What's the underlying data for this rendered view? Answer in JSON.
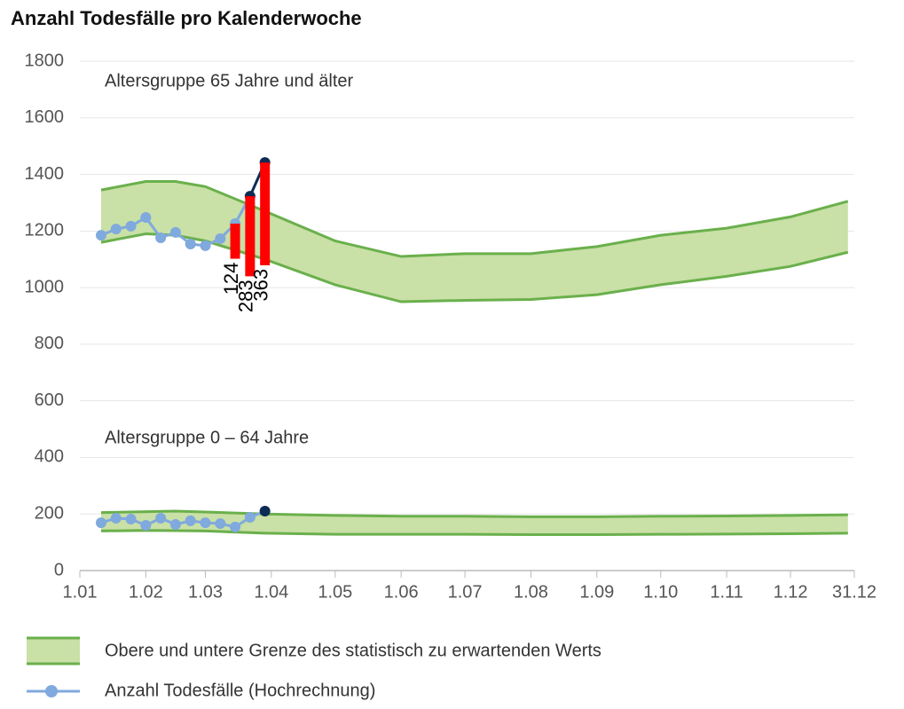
{
  "chart_data": {
    "type": "band-line",
    "title": "Anzahl Todesfälle pro Kalenderwoche",
    "xlim": [
      1,
      365
    ],
    "xticks": [
      {
        "value": 1,
        "label": "1.01"
      },
      {
        "value": 32,
        "label": "1.02"
      },
      {
        "value": 60,
        "label": "1.03"
      },
      {
        "value": 91,
        "label": "1.04"
      },
      {
        "value": 121,
        "label": "1.05"
      },
      {
        "value": 152,
        "label": "1.06"
      },
      {
        "value": 182,
        "label": "1.07"
      },
      {
        "value": 213,
        "label": "1.08"
      },
      {
        "value": 244,
        "label": "1.09"
      },
      {
        "value": 274,
        "label": "1.10"
      },
      {
        "value": 305,
        "label": "1.11"
      },
      {
        "value": 335,
        "label": "1.12"
      },
      {
        "value": 365,
        "label": "31.12"
      }
    ],
    "ylim": [
      0,
      1800
    ],
    "yticks": [
      0,
      200,
      400,
      600,
      800,
      1000,
      1200,
      1400,
      1600,
      1800
    ],
    "grid": true,
    "band_name": "Obere und untere Grenze des statistisch zu erwartenden Werts",
    "band_color": "#c9e0a6",
    "band_edge_color": "#6ab04c",
    "line_name": "Anzahl Todesfälle (Hochrechnung)",
    "line_color": "#80a9dd",
    "x": [
      11,
      18,
      25,
      32,
      39,
      46,
      53,
      60,
      67,
      74,
      81,
      88
    ],
    "band_x": [
      11,
      32,
      46,
      60,
      88,
      121,
      152,
      182,
      213,
      244,
      274,
      305,
      335,
      362
    ],
    "excess_color": "#ff0000",
    "groups": [
      {
        "label": "Altersgruppe 65 Jahre und älter",
        "values": [
          1185,
          1207,
          1217,
          1248,
          1176,
          1195,
          1154,
          1148,
          1173,
          1226,
          1323,
          1442
        ],
        "marker_colors": [
          "#80a9dd",
          "#80a9dd",
          "#80a9dd",
          "#80a9dd",
          "#80a9dd",
          "#80a9dd",
          "#80a9dd",
          "#80a9dd",
          "#80a9dd",
          "#80a9dd",
          "#0d2c54",
          "#0d2c54"
        ],
        "band_upper": [
          1345,
          1375,
          1375,
          1357,
          1270,
          1165,
          1110,
          1120,
          1120,
          1145,
          1185,
          1210,
          1250,
          1305
        ],
        "band_lower": [
          1160,
          1190,
          1185,
          1165,
          1100,
          1010,
          950,
          955,
          958,
          975,
          1010,
          1040,
          1075,
          1125
        ],
        "excess_x": [
          74,
          81,
          88
        ],
        "excess": [
          124,
          283,
          363
        ]
      },
      {
        "label": "Altersgruppe 0 – 64 Jahre",
        "values": [
          169,
          185,
          182,
          160,
          185,
          163,
          176,
          169,
          166,
          154,
          188,
          210
        ],
        "marker_colors": [
          "#80a9dd",
          "#80a9dd",
          "#80a9dd",
          "#80a9dd",
          "#80a9dd",
          "#80a9dd",
          "#80a9dd",
          "#80a9dd",
          "#80a9dd",
          "#80a9dd",
          "#80a9dd",
          "#0d2c54"
        ],
        "band_upper": [
          205,
          208,
          210,
          207,
          200,
          195,
          192,
          192,
          190,
          190,
          192,
          193,
          195,
          197
        ],
        "band_lower": [
          140,
          142,
          141,
          140,
          132,
          128,
          128,
          128,
          127,
          127,
          128,
          129,
          130,
          132
        ]
      }
    ]
  }
}
